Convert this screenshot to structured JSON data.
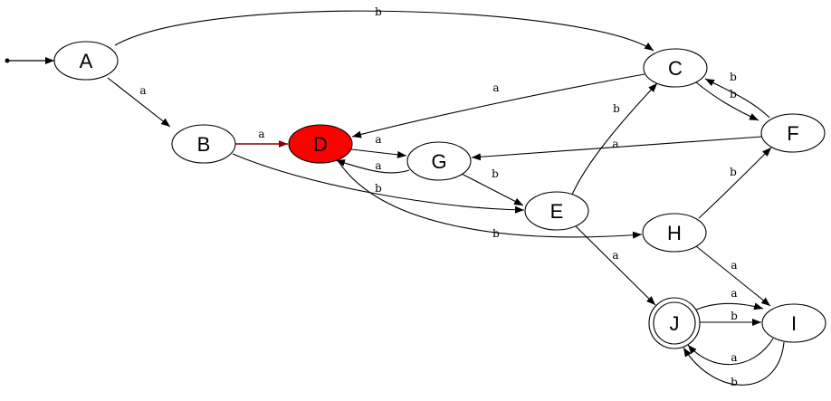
{
  "graph": {
    "colors": {
      "stroke": "#000000",
      "highlight_fill": "#ff0000",
      "highlight_edge": "#8b0000",
      "highlight_text": "#ffffff",
      "node_fill": "#ffffff"
    },
    "start_state": "A",
    "accepting_states": [
      "J"
    ],
    "highlighted_state": "D",
    "states": [
      {
        "id": "A",
        "label": "A"
      },
      {
        "id": "B",
        "label": "B"
      },
      {
        "id": "C",
        "label": "C"
      },
      {
        "id": "D",
        "label": "D"
      },
      {
        "id": "E",
        "label": "E"
      },
      {
        "id": "F",
        "label": "F"
      },
      {
        "id": "G",
        "label": "G"
      },
      {
        "id": "H",
        "label": "H"
      },
      {
        "id": "I",
        "label": "I"
      },
      {
        "id": "J",
        "label": "J"
      }
    ],
    "transitions": [
      {
        "from": "A",
        "to": "B",
        "label": "a"
      },
      {
        "from": "A",
        "to": "C",
        "label": "b"
      },
      {
        "from": "B",
        "to": "D",
        "label": "a"
      },
      {
        "from": "B",
        "to": "E",
        "label": "b"
      },
      {
        "from": "C",
        "to": "D",
        "label": "a"
      },
      {
        "from": "C",
        "to": "F",
        "label": "b"
      },
      {
        "from": "D",
        "to": "G",
        "label": "a"
      },
      {
        "from": "D",
        "to": "H",
        "label": "b"
      },
      {
        "from": "G",
        "to": "D",
        "label": "a"
      },
      {
        "from": "G",
        "to": "E",
        "label": "b"
      },
      {
        "from": "E",
        "to": "C",
        "label": "b"
      },
      {
        "from": "E",
        "to": "J",
        "label": "a"
      },
      {
        "from": "F",
        "to": "C",
        "label": "b"
      },
      {
        "from": "F",
        "to": "G",
        "label": "a"
      },
      {
        "from": "H",
        "to": "F",
        "label": "b"
      },
      {
        "from": "H",
        "to": "I",
        "label": "a"
      },
      {
        "from": "J",
        "to": "I",
        "label": "a"
      },
      {
        "from": "J",
        "to": "I",
        "label": "b"
      },
      {
        "from": "I",
        "to": "J",
        "label": "a"
      },
      {
        "from": "I",
        "to": "J",
        "label": "b"
      }
    ]
  }
}
